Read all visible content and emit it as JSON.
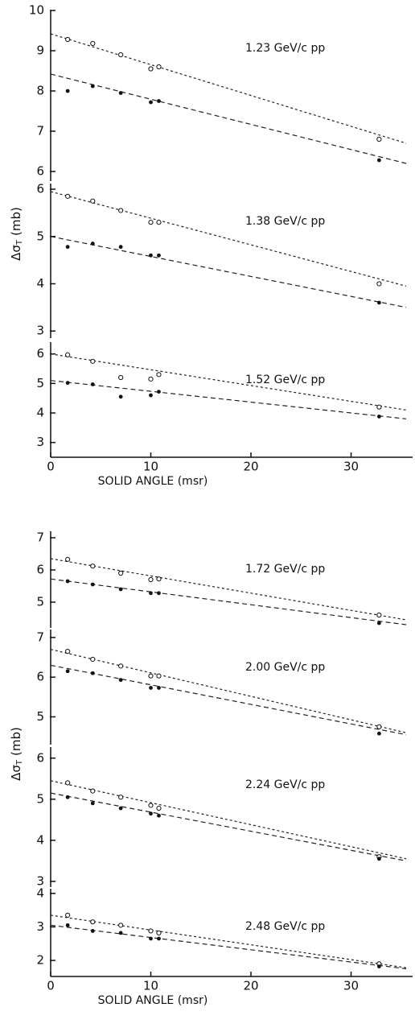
{
  "chart_data": [
    {
      "type": "scatter",
      "label": "1.23 GeV/c pp",
      "x": [
        1.7,
        4.2,
        7,
        10,
        10.8,
        32.8
      ],
      "series": [
        {
          "marker": "open",
          "values": [
            9.28,
            9.18,
            8.9,
            8.55,
            8.6,
            6.8
          ]
        },
        {
          "marker": "filled",
          "values": [
            8.0,
            8.12,
            7.95,
            7.72,
            7.75,
            6.28
          ]
        }
      ],
      "fits": [
        {
          "x": [
            0,
            35.5
          ],
          "values": [
            9.42,
            6.7
          ]
        },
        {
          "x": [
            0,
            35.5
          ],
          "values": [
            8.42,
            6.2
          ]
        }
      ],
      "xlim": [
        0,
        35.5
      ],
      "ylim": [
        5.76,
        10
      ],
      "yticks": [
        6,
        7,
        8,
        9,
        10
      ]
    },
    {
      "type": "scatter",
      "label": "1.38 GeV/c pp",
      "x": [
        1.7,
        4.2,
        7,
        10,
        10.8,
        32.8
      ],
      "series": [
        {
          "marker": "open",
          "values": [
            5.85,
            5.75,
            5.55,
            5.3,
            5.3,
            4.0
          ]
        },
        {
          "marker": "filled",
          "values": [
            4.78,
            4.85,
            4.78,
            4.6,
            4.6,
            3.6
          ]
        }
      ],
      "fits": [
        {
          "x": [
            0,
            35.5
          ],
          "values": [
            5.95,
            3.95
          ]
        },
        {
          "x": [
            0,
            35.5
          ],
          "values": [
            5.0,
            3.5
          ]
        }
      ],
      "xlim": [
        0,
        35.5
      ],
      "ylim": [
        2.85,
        6.12
      ],
      "yticks": [
        3,
        4,
        5,
        6
      ],
      "ylabel": [
        "Δσ",
        "T",
        "(mb)"
      ]
    },
    {
      "type": "scatter",
      "label": "1.52 GeV/c pp",
      "x": [
        1.7,
        4.2,
        7,
        10,
        10.8,
        32.8
      ],
      "series": [
        {
          "marker": "open",
          "values": [
            5.97,
            5.75,
            5.2,
            5.15,
            5.3,
            4.2
          ]
        },
        {
          "marker": "filled",
          "values": [
            5.02,
            4.97,
            4.55,
            4.6,
            4.72,
            3.88
          ]
        }
      ],
      "fits": [
        {
          "x": [
            0,
            35.5
          ],
          "values": [
            6.0,
            4.1
          ]
        },
        {
          "x": [
            0,
            35.5
          ],
          "values": [
            5.1,
            3.8
          ]
        }
      ],
      "xlim": [
        0,
        35.5
      ],
      "ylim": [
        2.5,
        6.4
      ],
      "yticks": [
        3,
        4,
        5,
        6
      ],
      "xticks": [
        0,
        10,
        20,
        30
      ],
      "xlabel": "SOLID ANGLE (msr)"
    },
    {
      "type": "scatter",
      "label": "1.72 GeV/c pp",
      "x": [
        1.7,
        4.2,
        7,
        10,
        10.8,
        32.8
      ],
      "series": [
        {
          "marker": "open",
          "values": [
            6.33,
            6.12,
            5.9,
            5.7,
            5.72,
            4.6
          ]
        },
        {
          "marker": "filled",
          "values": [
            5.65,
            5.55,
            5.4,
            5.28,
            5.28,
            4.35
          ]
        }
      ],
      "fits": [
        {
          "x": [
            0,
            35.5
          ],
          "values": [
            6.35,
            4.45
          ]
        },
        {
          "x": [
            0,
            35.5
          ],
          "values": [
            5.72,
            4.3
          ]
        }
      ],
      "xlim": [
        0,
        35.5
      ],
      "ylim": [
        4.2,
        7.2
      ],
      "yticks": [
        5,
        6,
        7
      ]
    },
    {
      "type": "scatter",
      "label": "2.00 GeV/c pp",
      "x": [
        1.7,
        4.2,
        7,
        10,
        10.8,
        32.8
      ],
      "series": [
        {
          "marker": "open",
          "values": [
            6.65,
            6.45,
            6.28,
            6.03,
            6.03,
            4.75
          ]
        },
        {
          "marker": "filled",
          "values": [
            6.15,
            6.1,
            5.93,
            5.73,
            5.73,
            4.58
          ]
        }
      ],
      "fits": [
        {
          "x": [
            0,
            35.5
          ],
          "values": [
            6.7,
            4.6
          ]
        },
        {
          "x": [
            0,
            35.5
          ],
          "values": [
            6.3,
            4.55
          ]
        }
      ],
      "xlim": [
        0,
        35.5
      ],
      "ylim": [
        4.3,
        7.2
      ],
      "yticks": [
        5,
        6,
        7
      ]
    },
    {
      "type": "scatter",
      "label": "2.24 GeV/c pp",
      "x": [
        1.7,
        4.2,
        7,
        10,
        10.8,
        32.8
      ],
      "series": [
        {
          "marker": "open",
          "values": [
            5.4,
            5.2,
            5.05,
            4.85,
            4.78,
            3.6
          ]
        },
        {
          "marker": "filled",
          "values": [
            5.05,
            4.9,
            4.78,
            4.65,
            4.6,
            3.55
          ]
        }
      ],
      "fits": [
        {
          "x": [
            0,
            35.5
          ],
          "values": [
            5.45,
            3.55
          ]
        },
        {
          "x": [
            0,
            35.5
          ],
          "values": [
            5.15,
            3.5
          ]
        }
      ],
      "xlim": [
        0,
        35.5
      ],
      "ylim": [
        2.86,
        6.27
      ],
      "yticks": [
        3,
        4,
        5,
        6
      ],
      "ylabel": [
        "Δσ",
        "T",
        "(mb)"
      ]
    },
    {
      "type": "scatter",
      "label": "2.48 GeV/c pp",
      "x": [
        1.7,
        4.2,
        7,
        10,
        10.8,
        32.8
      ],
      "series": [
        {
          "marker": "open",
          "values": [
            3.35,
            3.15,
            3.05,
            2.88,
            2.82,
            1.9
          ]
        },
        {
          "marker": "filled",
          "values": [
            3.05,
            2.88,
            2.82,
            2.65,
            2.65,
            1.82
          ]
        }
      ],
      "fits": [
        {
          "x": [
            0,
            35.5
          ],
          "values": [
            3.35,
            1.78
          ]
        },
        {
          "x": [
            0,
            35.5
          ],
          "values": [
            3.05,
            1.75
          ]
        }
      ],
      "xlim": [
        0,
        35.5
      ],
      "ylim": [
        1.52,
        4.14
      ],
      "yticks": [
        2,
        3,
        4
      ],
      "xticks": [
        0,
        10,
        20,
        30
      ],
      "xlabel": "SOLID ANGLE (msr)"
    }
  ]
}
